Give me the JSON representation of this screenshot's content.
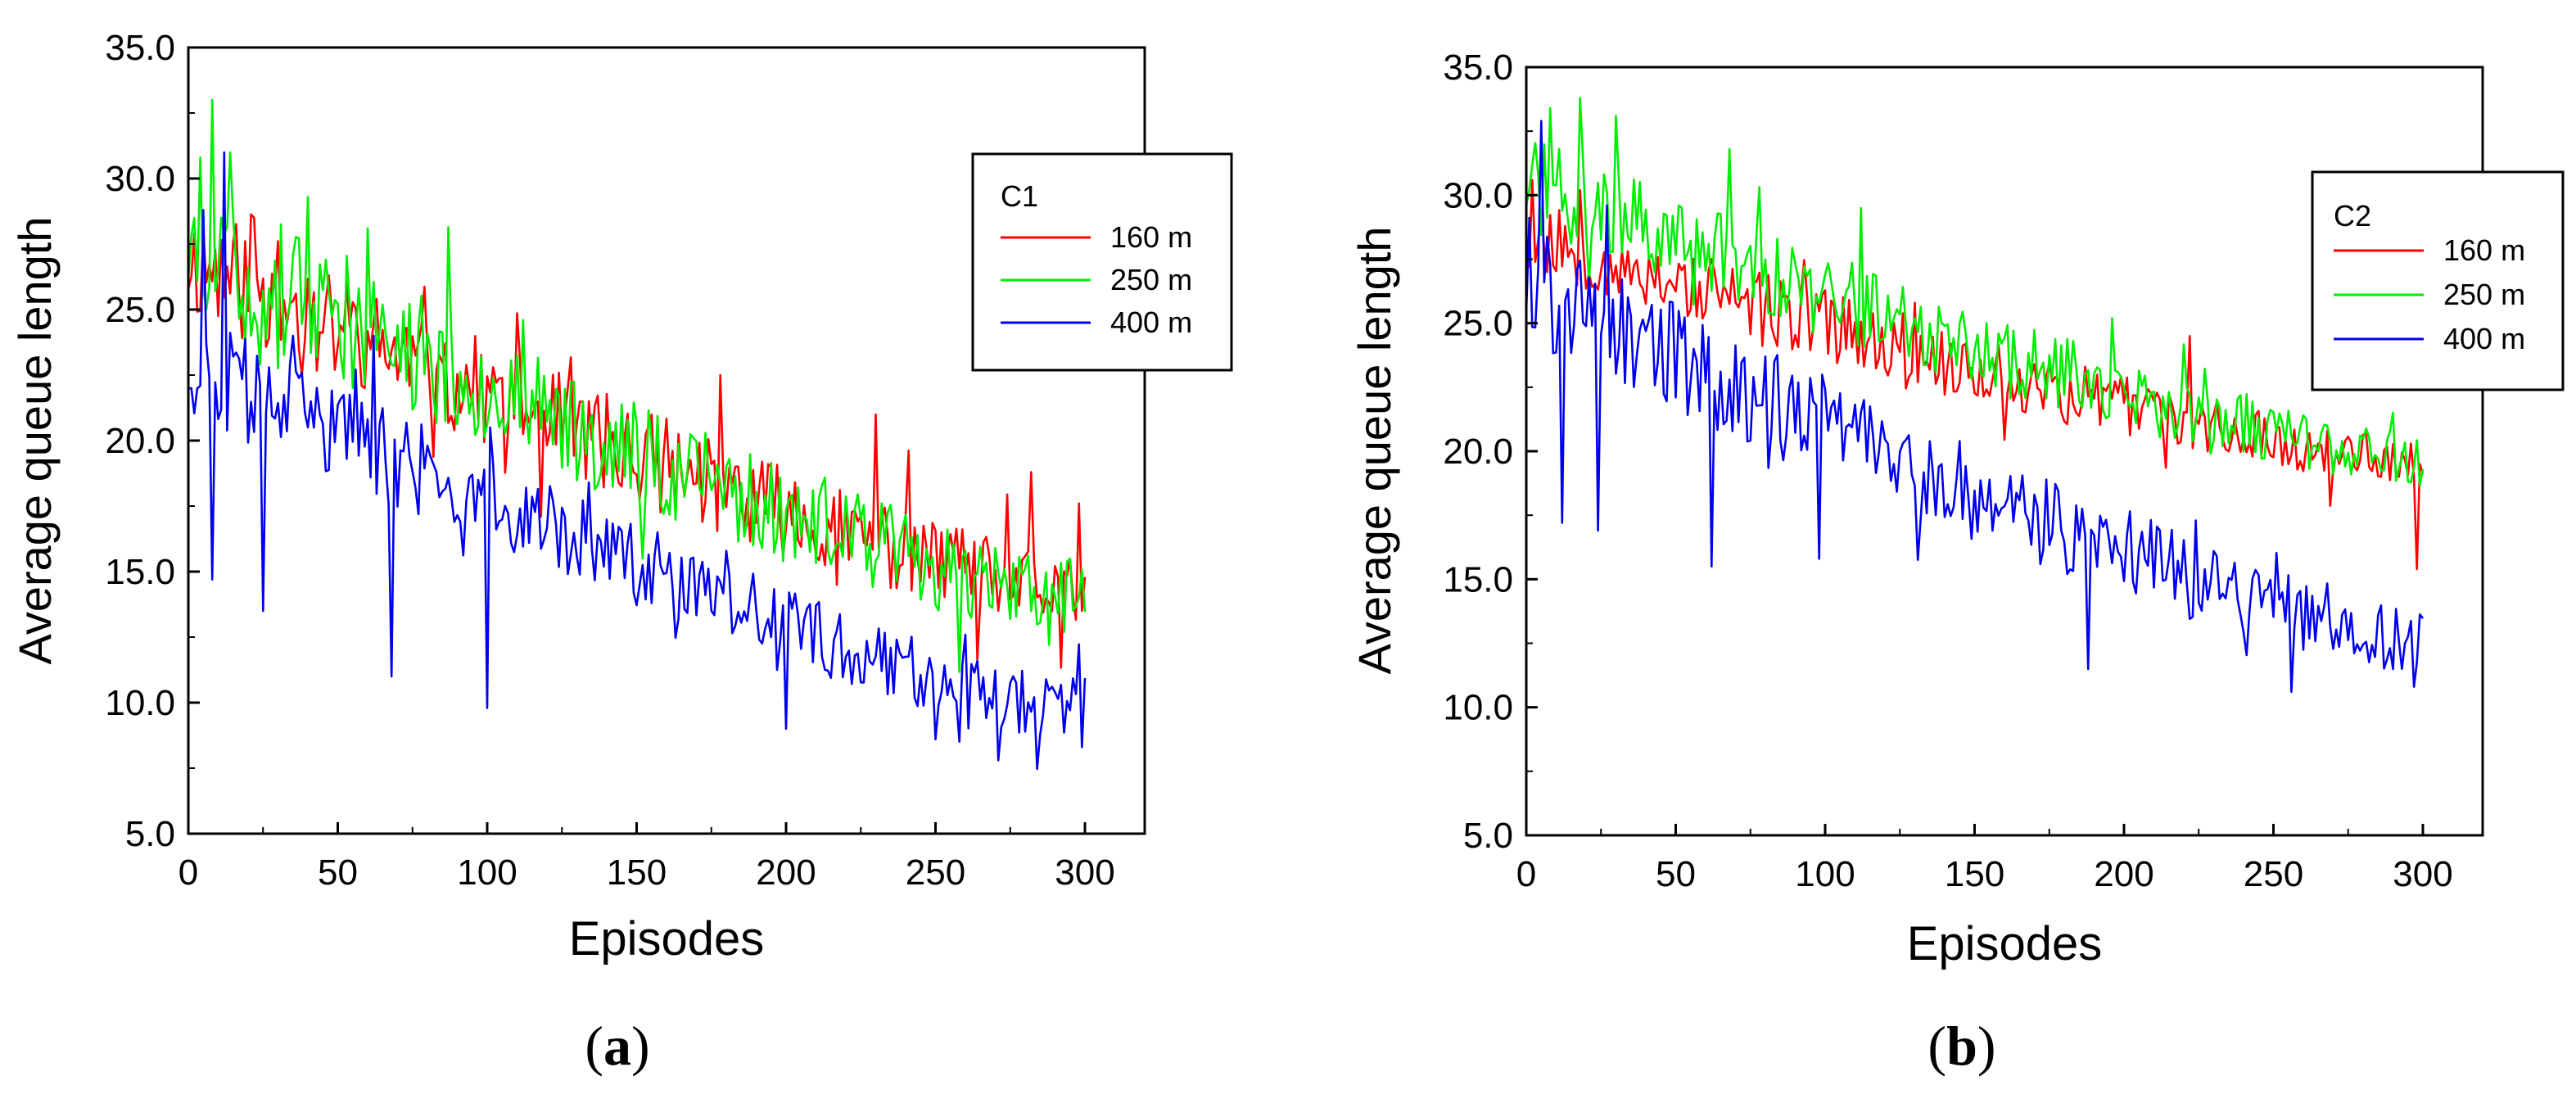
{
  "chart_data": [
    {
      "type": "line",
      "caption_open": "(",
      "caption_letter": "a",
      "caption_close": ")",
      "legend_title": "C1",
      "xlabel": "Episodes",
      "ylabel": "Average queue length",
      "xlim": [
        0,
        320
      ],
      "ylim": [
        5.0,
        35.0
      ],
      "xticks": [
        "0",
        "50",
        "100",
        "150",
        "200",
        "250",
        "300"
      ],
      "xtick_values": [
        0,
        50,
        100,
        150,
        200,
        250,
        300
      ],
      "yticks": [
        "5.0",
        "10.0",
        "15.0",
        "20.0",
        "25.0",
        "30.0",
        "35.0"
      ],
      "ytick_values": [
        5,
        10,
        15,
        20,
        25,
        30,
        35
      ],
      "legend_position": "top-right",
      "series": [
        {
          "name": "160 m",
          "color": "#ff0000",
          "start": 27.0,
          "end": 14.0,
          "noise": 1.6,
          "seed": 11,
          "spikes": [
            [
              22,
              28.5
            ],
            [
              62,
              24.5
            ],
            [
              178,
              22.5
            ],
            [
              230,
              21.0
            ],
            [
              282,
              18.8
            ],
            [
              298,
              17.6
            ],
            [
              299,
              13.5
            ]
          ]
        },
        {
          "name": "250 m",
          "color": "#00ee00",
          "start": 27.5,
          "end": 13.8,
          "noise": 1.8,
          "seed": 23,
          "spikes": [
            [
              4,
              30.8
            ],
            [
              8,
              33.0
            ],
            [
              14,
              31.0
            ],
            [
              40,
              29.3
            ],
            [
              112,
              24.6
            ],
            [
              152,
              15.5
            ],
            [
              288,
              12.2
            ]
          ]
        },
        {
          "name": "400 m",
          "color": "#0000ee",
          "start": 23.0,
          "end": 9.6,
          "noise": 1.4,
          "seed": 37,
          "spikes": [
            [
              1,
              22.0
            ],
            [
              5,
              28.8
            ],
            [
              8,
              14.7
            ],
            [
              12,
              31.0
            ],
            [
              25,
              13.5
            ],
            [
              35,
              24.0
            ],
            [
              62,
              24.0
            ],
            [
              68,
              11.0
            ],
            [
              100,
              9.8
            ],
            [
              200,
              9.0
            ],
            [
              250,
              8.6
            ],
            [
              299,
              8.3
            ]
          ]
        }
      ]
    },
    {
      "type": "line",
      "caption_open": "(",
      "caption_letter": "b",
      "caption_close": ")",
      "legend_title": "C2",
      "xlabel": "Episodes",
      "ylabel": "Average queue length",
      "xlim": [
        0,
        320
      ],
      "ylim": [
        5.0,
        35.0
      ],
      "xticks": [
        "0",
        "50",
        "100",
        "150",
        "200",
        "250",
        "300"
      ],
      "xtick_values": [
        0,
        50,
        100,
        150,
        200,
        250,
        300
      ],
      "yticks": [
        "5.0",
        "10.0",
        "15.0",
        "20.0",
        "25.0",
        "30.0",
        "35.0"
      ],
      "ytick_values": [
        5,
        10,
        15,
        20,
        25,
        30,
        35
      ],
      "legend_position": "top-right",
      "series": [
        {
          "name": "160 m",
          "color": "#ff0000",
          "start": 28.5,
          "end": 19.5,
          "noise": 1.1,
          "seed": 53,
          "spikes": [
            [
              2,
              30.6
            ],
            [
              18,
              30.2
            ],
            [
              130,
              25.8
            ],
            [
              222,
              24.5
            ],
            [
              298,
              15.4
            ],
            [
              299,
              19.5
            ]
          ]
        },
        {
          "name": "250 m",
          "color": "#00ee00",
          "start": 30.5,
          "end": 19.5,
          "noise": 1.3,
          "seed": 71,
          "spikes": [
            [
              8,
              33.4
            ],
            [
              18,
              33.8
            ],
            [
              30,
              33.1
            ],
            [
              68,
              31.8
            ],
            [
              112,
              29.5
            ],
            [
              196,
              25.2
            ],
            [
              290,
              21.5
            ]
          ]
        },
        {
          "name": "400 m",
          "color": "#0000ee",
          "start": 26.5,
          "end": 12.5,
          "noise": 1.6,
          "seed": 89,
          "spikes": [
            [
              5,
              32.9
            ],
            [
              12,
              17.2
            ],
            [
              24,
              16.9
            ],
            [
              27,
              29.6
            ],
            [
              56,
              24.0
            ],
            [
              62,
              15.5
            ],
            [
              76,
              22.9
            ],
            [
              98,
              15.8
            ],
            [
              113,
              22.0
            ],
            [
              145,
              20.4
            ],
            [
              188,
              11.5
            ],
            [
              224,
              17.3
            ],
            [
              256,
              10.6
            ],
            [
              297,
              10.8
            ]
          ]
        }
      ]
    }
  ]
}
